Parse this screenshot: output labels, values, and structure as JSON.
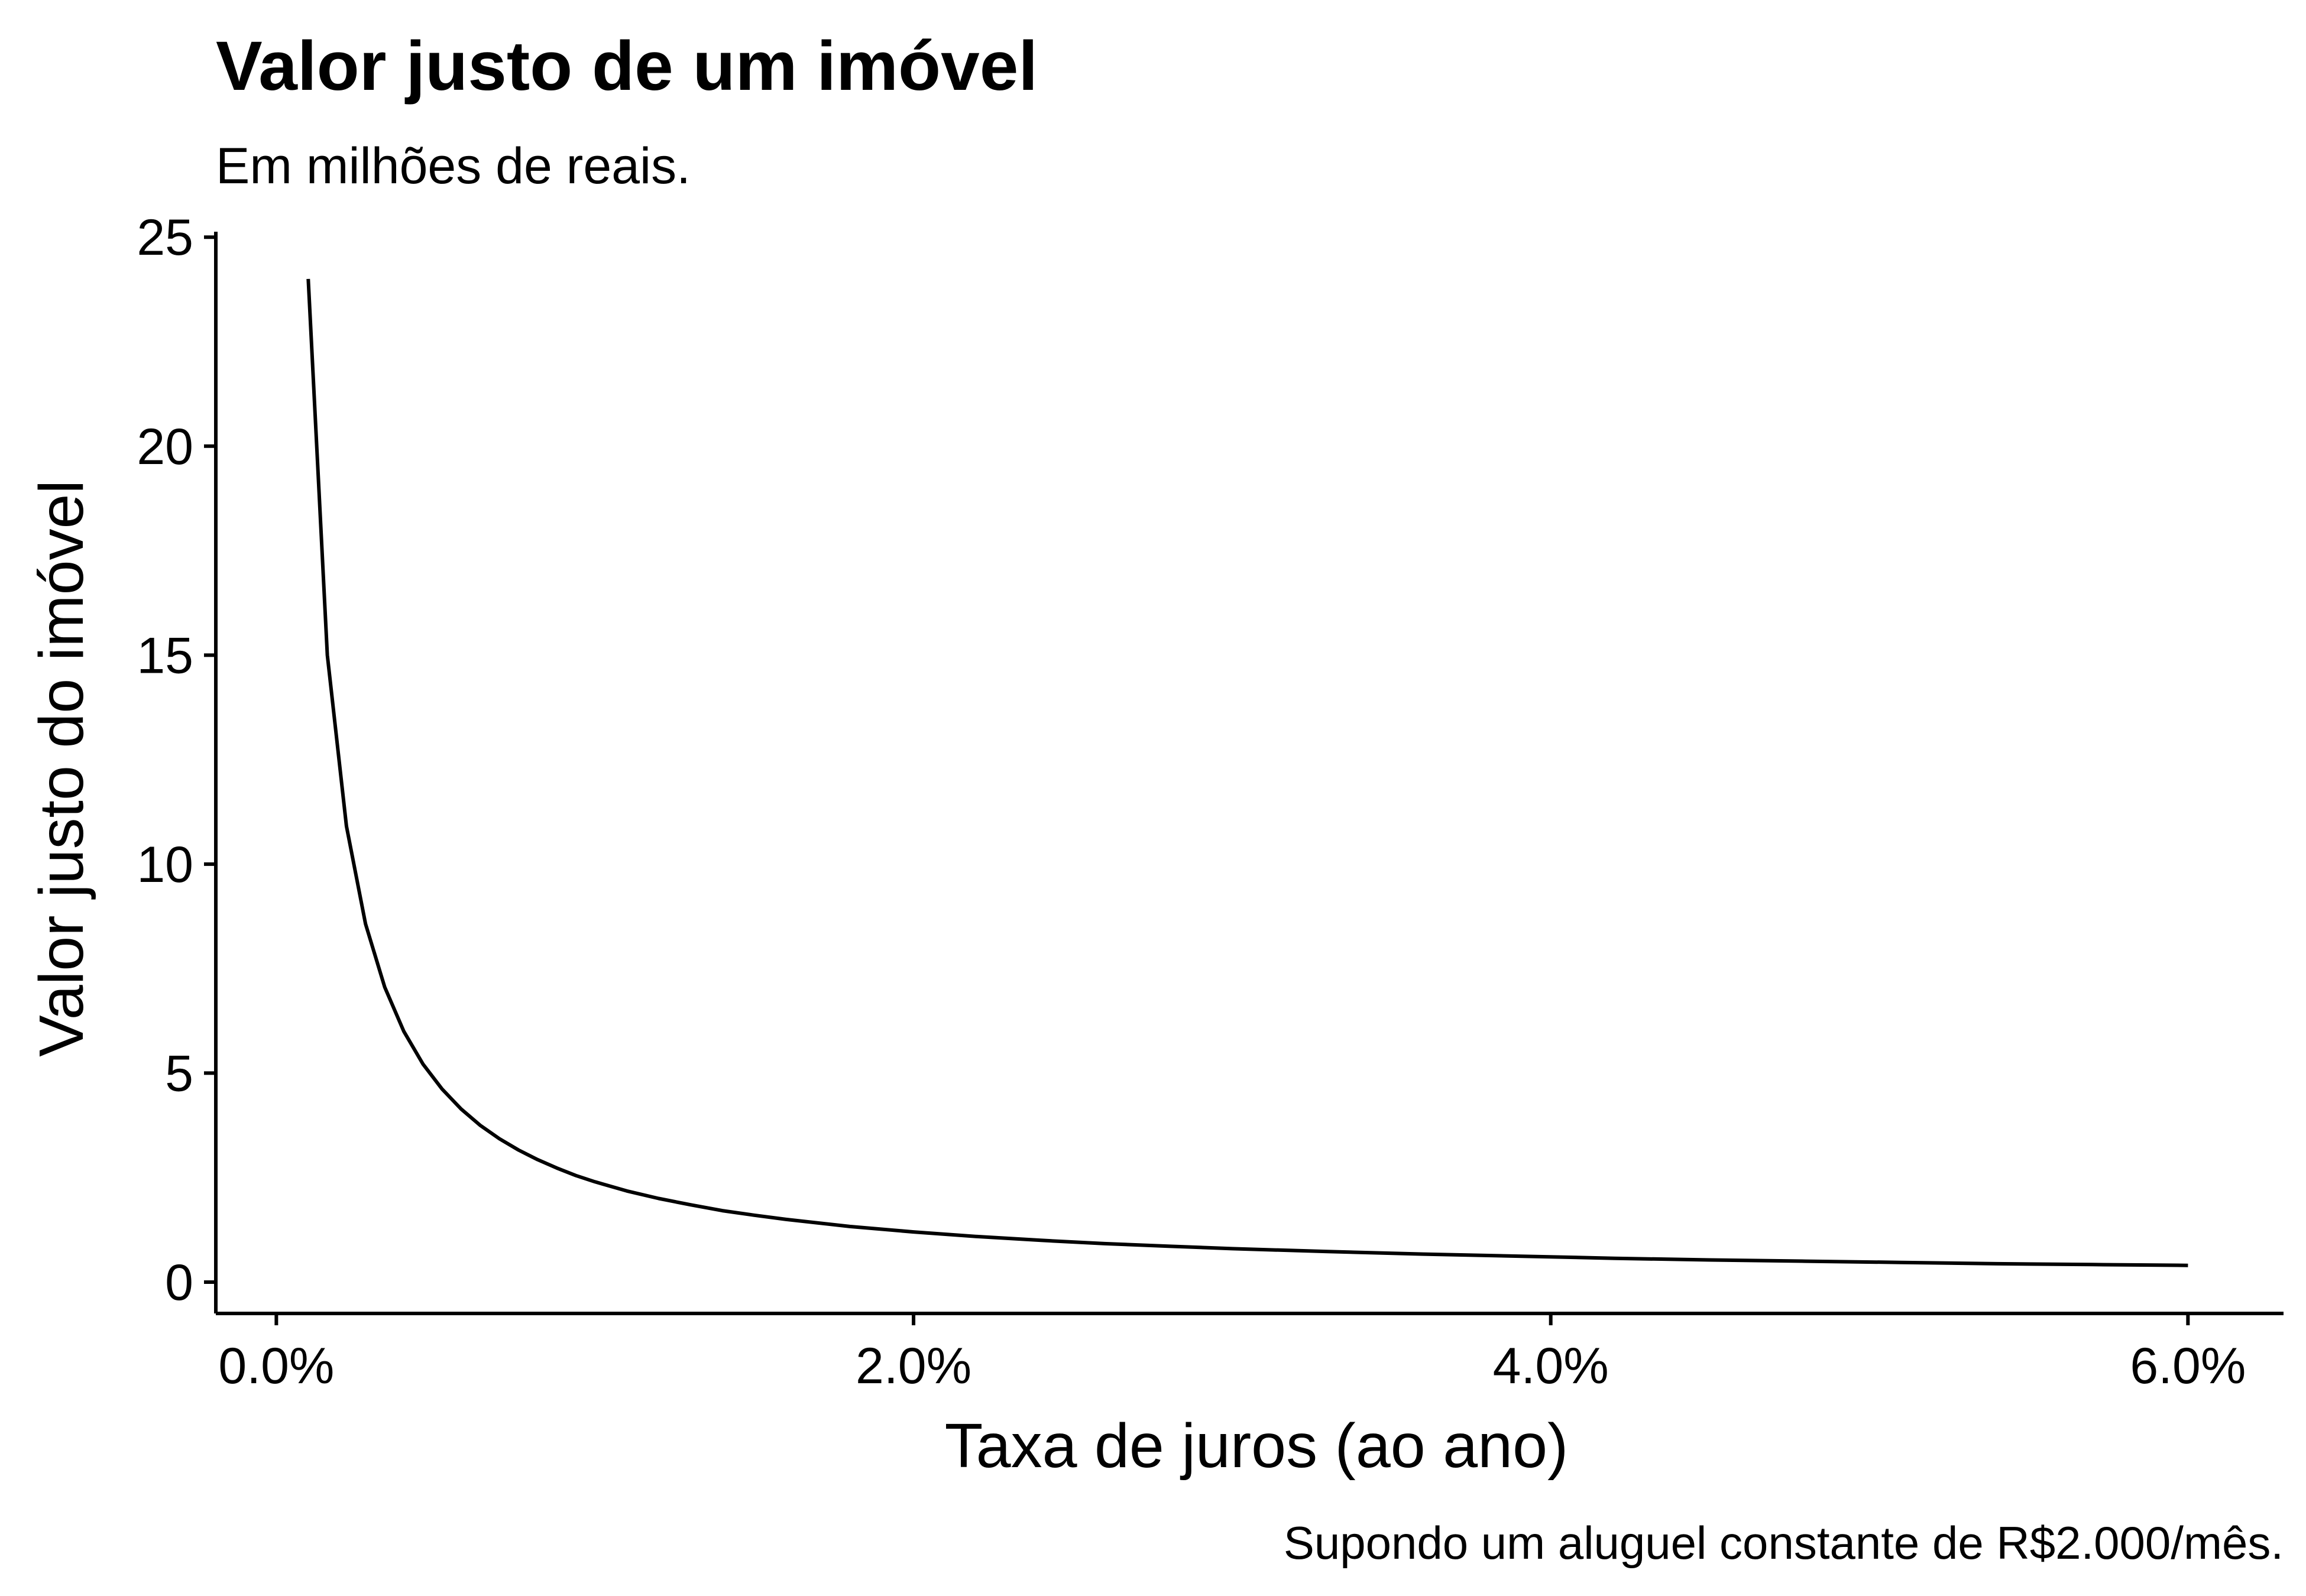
{
  "chart_data": {
    "type": "line",
    "title": "Valor justo de um imóvel",
    "subtitle": "Em milhões de reais.",
    "xlabel": "Taxa de juros (ao ano)",
    "ylabel": "Valor justo do imóvel",
    "caption": "Supondo um aluguel constante de R$2.000/mês.",
    "xlim": [
      -0.0019,
      0.063
    ],
    "ylim": [
      -0.75,
      25.3
    ],
    "x_ticks": [
      0.0,
      0.02,
      0.04,
      0.06
    ],
    "x_tick_labels": [
      "0.0%",
      "2.0%",
      "4.0%",
      "6.0%"
    ],
    "y_ticks": [
      0,
      5,
      10,
      15,
      20,
      25
    ],
    "y_tick_labels": [
      "0",
      "5",
      "10",
      "15",
      "20",
      "25"
    ],
    "grid": false,
    "legend": "none",
    "series": [
      {
        "x": [
          0.001,
          0.0016,
          0.0022,
          0.0028,
          0.0034,
          0.004,
          0.0046,
          0.0052,
          0.0058,
          0.0064,
          0.007,
          0.0076,
          0.0082,
          0.0088,
          0.0094,
          0.01,
          0.011,
          0.012,
          0.013,
          0.014,
          0.015,
          0.016,
          0.018,
          0.02,
          0.022,
          0.024,
          0.026,
          0.028,
          0.03,
          0.033,
          0.036,
          0.039,
          0.042,
          0.045,
          0.048,
          0.051,
          0.054,
          0.057,
          0.06
        ],
        "y": [
          24.0,
          15.0,
          10.91,
          8.57,
          7.06,
          6.0,
          5.22,
          4.62,
          4.14,
          3.75,
          3.43,
          3.16,
          2.93,
          2.73,
          2.55,
          2.4,
          2.18,
          2.0,
          1.85,
          1.71,
          1.6,
          1.5,
          1.33,
          1.2,
          1.09,
          1.0,
          0.92,
          0.86,
          0.8,
          0.73,
          0.67,
          0.62,
          0.57,
          0.53,
          0.5,
          0.47,
          0.44,
          0.42,
          0.4
        ]
      }
    ],
    "line_color": "#000000"
  }
}
